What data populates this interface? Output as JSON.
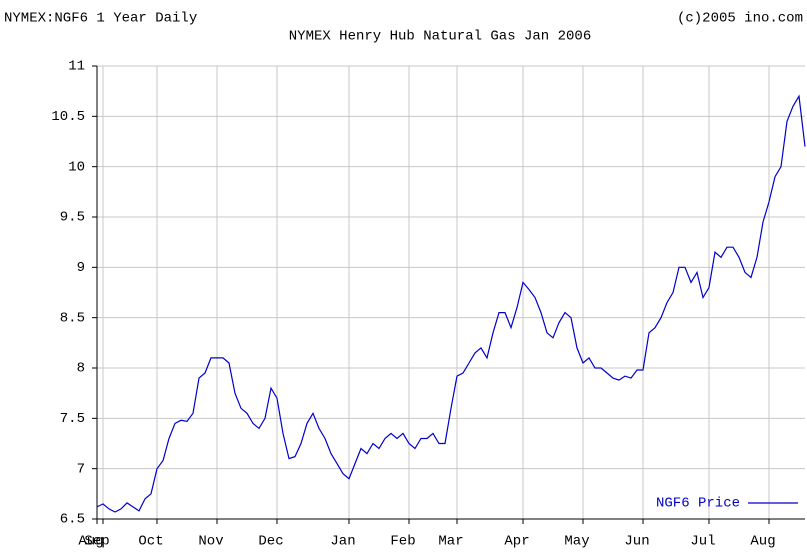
{
  "chart_data": {
    "type": "line",
    "source_label": "NYMEX:NGF6 1 Year Daily",
    "title": "NYMEX Henry Hub Natural Gas Jan 2006",
    "credit": "(c)2005 ino.com",
    "categories": [
      "Aug",
      "Sep",
      null,
      null,
      null,
      null,
      null,
      null,
      null,
      null,
      "Oct",
      null,
      null,
      null,
      null,
      null,
      null,
      null,
      null,
      null,
      "Nov",
      null,
      null,
      null,
      null,
      null,
      null,
      null,
      null,
      null,
      "Dec",
      null,
      null,
      null,
      null,
      null,
      null,
      null,
      null,
      null,
      null,
      null,
      "Jan",
      null,
      null,
      null,
      null,
      null,
      null,
      null,
      null,
      null,
      "Feb",
      null,
      null,
      null,
      null,
      null,
      null,
      null,
      "Mar",
      null,
      null,
      null,
      null,
      null,
      null,
      null,
      null,
      null,
      null,
      "Apr",
      null,
      null,
      null,
      null,
      null,
      null,
      null,
      null,
      null,
      "May",
      null,
      null,
      null,
      null,
      null,
      null,
      null,
      null,
      null,
      "Jun",
      null,
      null,
      null,
      null,
      null,
      null,
      null,
      null,
      null,
      null,
      "Jul",
      null,
      null,
      null,
      null,
      null,
      null,
      null,
      null,
      null,
      "Aug",
      null,
      null,
      null,
      null,
      null,
      null
    ],
    "series": [
      {
        "name": "NGF6 Price",
        "color": "#0000cc",
        "values": [
          6.62,
          6.65,
          6.6,
          6.57,
          6.6,
          6.66,
          6.62,
          6.58,
          6.7,
          6.75,
          7.0,
          7.08,
          7.3,
          7.45,
          7.48,
          7.47,
          7.55,
          7.9,
          7.95,
          8.1,
          8.1,
          8.1,
          8.05,
          7.75,
          7.6,
          7.55,
          7.45,
          7.4,
          7.5,
          7.8,
          7.7,
          7.35,
          7.1,
          7.12,
          7.25,
          7.45,
          7.55,
          7.4,
          7.3,
          7.15,
          7.05,
          6.95,
          6.9,
          7.05,
          7.2,
          7.15,
          7.25,
          7.2,
          7.3,
          7.35,
          7.3,
          7.35,
          7.25,
          7.2,
          7.3,
          7.3,
          7.35,
          7.25,
          7.25,
          7.6,
          7.92,
          7.95,
          8.05,
          8.15,
          8.2,
          8.1,
          8.35,
          8.55,
          8.55,
          8.4,
          8.6,
          8.85,
          8.78,
          8.7,
          8.55,
          8.35,
          8.3,
          8.45,
          8.55,
          8.5,
          8.2,
          8.05,
          8.1,
          8.0,
          8.0,
          7.95,
          7.9,
          7.88,
          7.92,
          7.9,
          7.98,
          7.98,
          8.35,
          8.4,
          8.5,
          8.65,
          8.75,
          9.0,
          9.0,
          8.85,
          8.95,
          8.7,
          8.8,
          9.15,
          9.1,
          9.2,
          9.2,
          9.1,
          8.95,
          8.9,
          9.1,
          9.45,
          9.65,
          9.9,
          10.0,
          10.45,
          10.6,
          10.7,
          10.2
        ]
      }
    ],
    "ylim": [
      6.5,
      11
    ],
    "yticks": [
      6.5,
      7,
      7.5,
      8,
      8.5,
      9,
      9.5,
      10,
      10.5,
      11
    ],
    "grid": true,
    "legend": "bottom-right"
  }
}
